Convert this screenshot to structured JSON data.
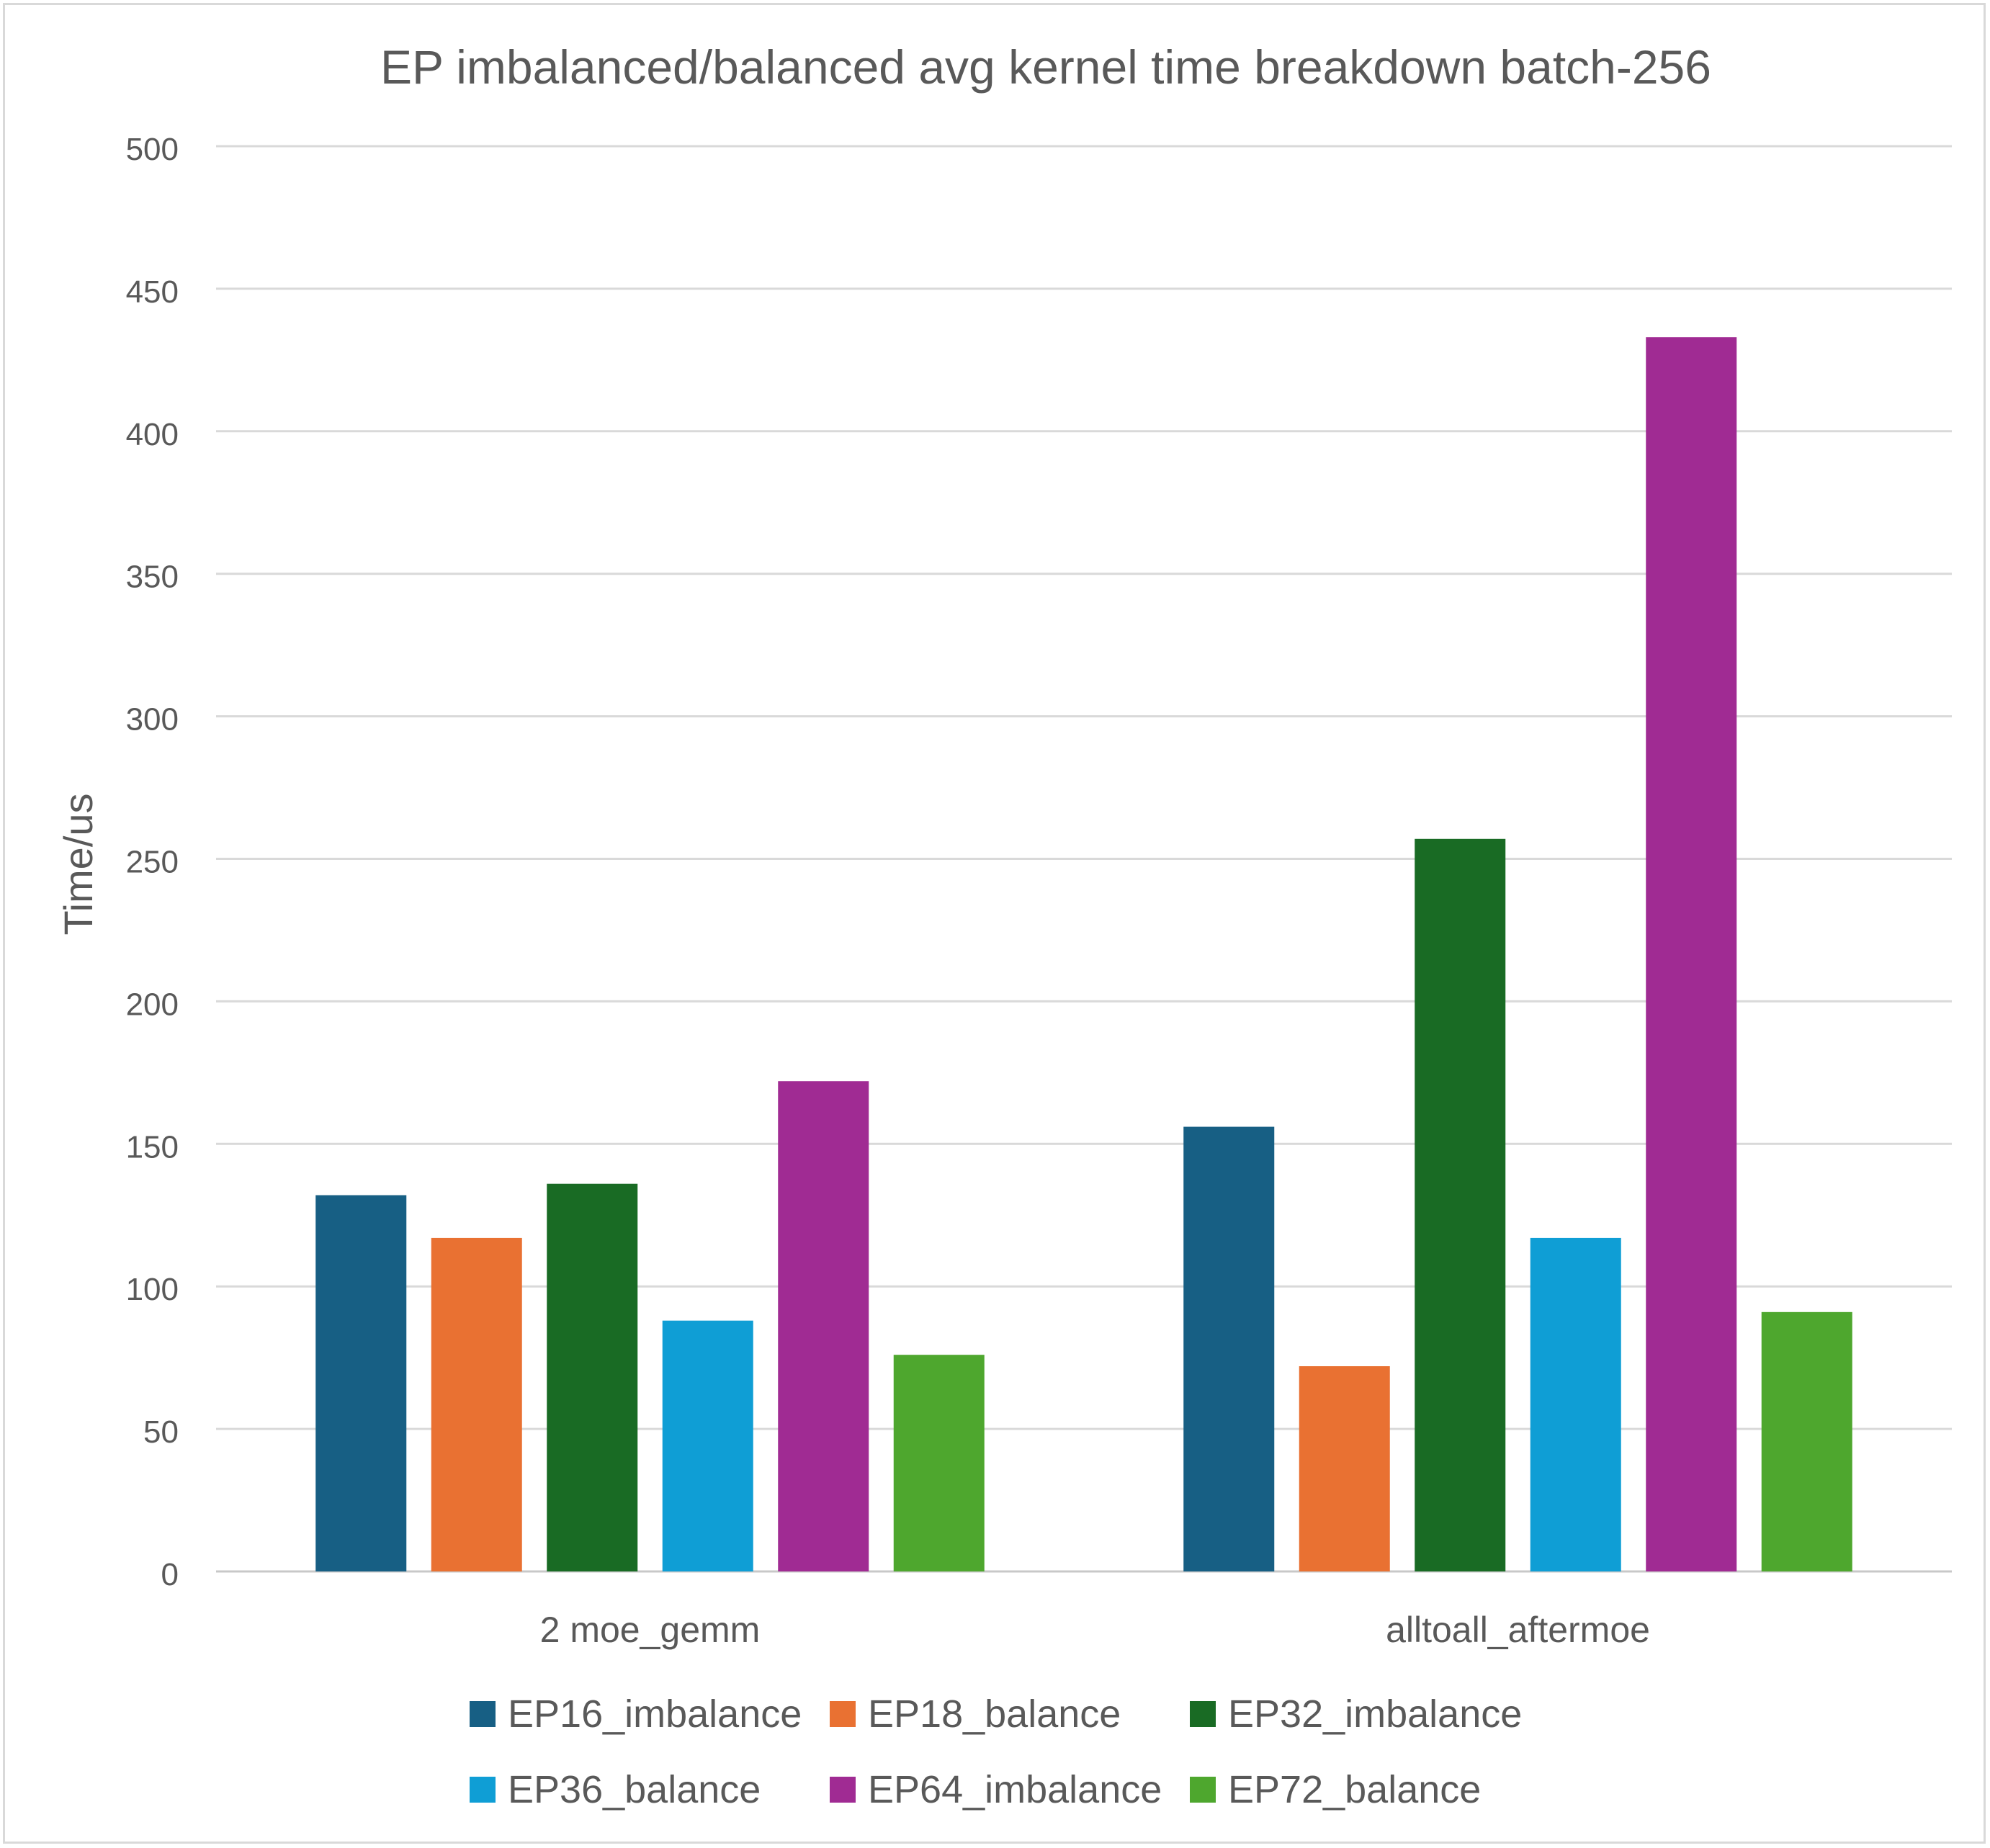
{
  "chart_data": {
    "type": "bar",
    "title": "EP imbalanced/balanced avg kernel time breakdown batch-256",
    "xlabel": "",
    "ylabel": "Time/us",
    "ylim": [
      0,
      500
    ],
    "yticks": [
      0,
      50,
      100,
      150,
      200,
      250,
      300,
      350,
      400,
      450,
      500
    ],
    "grid": true,
    "legend_position": "bottom",
    "categories": [
      "2 moe_gemm",
      "alltoall_aftermoe"
    ],
    "series": [
      {
        "name": "EP16_imbalance",
        "color": "#175f84",
        "values": [
          132,
          156
        ]
      },
      {
        "name": "EP18_balance",
        "color": "#e97132",
        "values": [
          117,
          72
        ]
      },
      {
        "name": "EP32_imbalance",
        "color": "#196b24",
        "values": [
          136,
          257
        ]
      },
      {
        "name": "EP36_balance",
        "color": "#0f9ed5",
        "values": [
          88,
          117
        ]
      },
      {
        "name": "EP64_imbalance",
        "color": "#a02b93",
        "values": [
          172,
          433
        ]
      },
      {
        "name": "EP72_balance",
        "color": "#4ea72e",
        "values": [
          76,
          91
        ]
      }
    ]
  }
}
